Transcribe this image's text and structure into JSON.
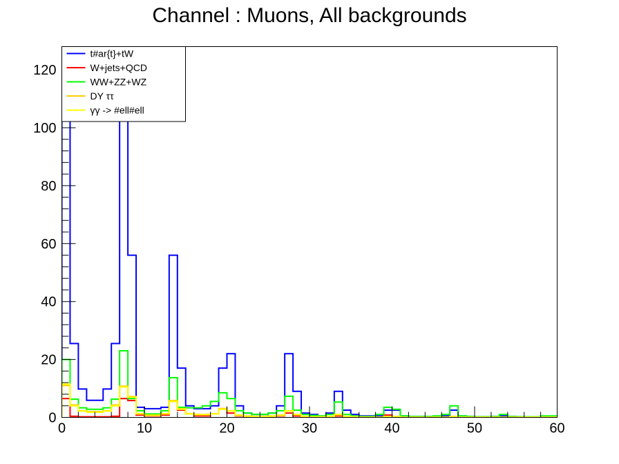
{
  "chart_data": {
    "type": "line",
    "title": "Channel : Muons, All backgrounds",
    "xlabel": "",
    "ylabel": "",
    "xlim": [
      0,
      60
    ],
    "ylim": [
      0,
      128
    ],
    "bin_width": 1,
    "x_ticks": [
      0,
      10,
      20,
      30,
      40,
      50,
      60
    ],
    "y_ticks": [
      0,
      20,
      40,
      60,
      80,
      100,
      120
    ],
    "legend_position": "top-left",
    "series": [
      {
        "name": "t#ar{t}+tW",
        "color": "#0000ff",
        "values": [
          128,
          25.5,
          9.8,
          5.9,
          5.9,
          9.8,
          25.5,
          128,
          56,
          3.5,
          3,
          3,
          3.5,
          56,
          17,
          4,
          3,
          3,
          4,
          17,
          22,
          4,
          1.5,
          1,
          1,
          1.5,
          4,
          22,
          9,
          1.5,
          1,
          0.5,
          1.5,
          9,
          2.5,
          1,
          0.5,
          0.5,
          0.5,
          2.5,
          2.5,
          0.5,
          0.3,
          0.3,
          0.3,
          0.3,
          0.5,
          2.5,
          0.5,
          0.3,
          0.2,
          0.2,
          0.3,
          0.5,
          0.3,
          0.2,
          0.1,
          0.1,
          0.1,
          0.1
        ]
      },
      {
        "name": "W+jets+QCD",
        "color": "#ff0000",
        "values": [
          6.5,
          0.4,
          0.2,
          0.2,
          0.2,
          0.2,
          0.4,
          6.5,
          5.8,
          0.8,
          0.5,
          0.5,
          0.8,
          5.5,
          2.5,
          1.2,
          0.5,
          0.5,
          1.2,
          3,
          1.5,
          0.5,
          0.3,
          0.2,
          0.2,
          0.3,
          0.5,
          1.5,
          0.5,
          0.2,
          0.1,
          0.1,
          0.2,
          0.5,
          0.2,
          0.1,
          0.1,
          0.1,
          0.1,
          0.8,
          0.3,
          0.1,
          0.1,
          0.1,
          0.1,
          0.1,
          0.1,
          0.3,
          0.1,
          0.1,
          0.1,
          0.1,
          0.1,
          0.1,
          0.1,
          0.1,
          0.1,
          0.1,
          0.1,
          0.1
        ]
      },
      {
        "name": "WW+ZZ+WZ",
        "color": "#00ff00",
        "values": [
          20,
          6.3,
          3.3,
          2.8,
          2.8,
          3.3,
          6.3,
          23,
          6.5,
          2.3,
          1.2,
          1.2,
          2.3,
          13.7,
          3.5,
          3.3,
          3.3,
          4,
          5.5,
          8.5,
          6.5,
          2.3,
          1.5,
          1,
          1,
          1.5,
          2.3,
          7.3,
          2.5,
          1,
          0.7,
          0.5,
          1,
          5.3,
          1,
          0.5,
          0.3,
          0.3,
          1,
          3.5,
          2.8,
          0.5,
          0.3,
          0.3,
          0.3,
          0.5,
          1,
          4,
          0.5,
          0.3,
          0.2,
          0.2,
          0.3,
          1,
          0.3,
          0.2,
          0.2,
          0.2,
          0.5,
          0.5
        ]
      },
      {
        "name": "DY ττ",
        "color": "#ffcc00",
        "values": [
          11,
          4.3,
          2.3,
          2,
          2,
          2.3,
          4.3,
          10.8,
          7.2,
          1.3,
          0.8,
          0.8,
          1.3,
          5.8,
          3,
          1.3,
          1,
          1,
          1.3,
          3,
          2.3,
          0.8,
          0.5,
          0.3,
          0.3,
          0.5,
          0.8,
          2.3,
          1,
          0.3,
          0.2,
          0.2,
          0.3,
          1,
          0.3,
          0.2,
          0.1,
          0.1,
          0.1,
          0.3,
          0.3,
          0.1,
          0.1,
          0.1,
          0.1,
          0.1,
          0.1,
          0.3,
          0.1,
          0.1,
          0.1,
          0.1,
          0.1,
          0.1,
          0.1,
          0.1,
          0.1,
          0.1,
          0.1,
          0.1
        ]
      },
      {
        "name": "γγ -> #ell#ell",
        "color": "#ffff00",
        "values": [
          11.5,
          4,
          2.2,
          1.8,
          1.8,
          2.2,
          4,
          10.5,
          7,
          1.2,
          0.7,
          0.7,
          1.2,
          5.5,
          2.8,
          1.2,
          0.9,
          0.9,
          1.2,
          2.8,
          2.2,
          0.7,
          0.4,
          0.3,
          0.3,
          0.4,
          0.7,
          2.2,
          0.9,
          0.3,
          0.2,
          0.2,
          0.3,
          0.9,
          0.3,
          0.2,
          0.1,
          0.1,
          0.1,
          0.3,
          0.3,
          0.1,
          0.1,
          0.1,
          0.1,
          0.1,
          0.1,
          0.3,
          0.1,
          0.1,
          0.1,
          0.1,
          0.1,
          0.1,
          0.1,
          0.1,
          0.1,
          0.1,
          0.1,
          0.1
        ]
      }
    ]
  }
}
